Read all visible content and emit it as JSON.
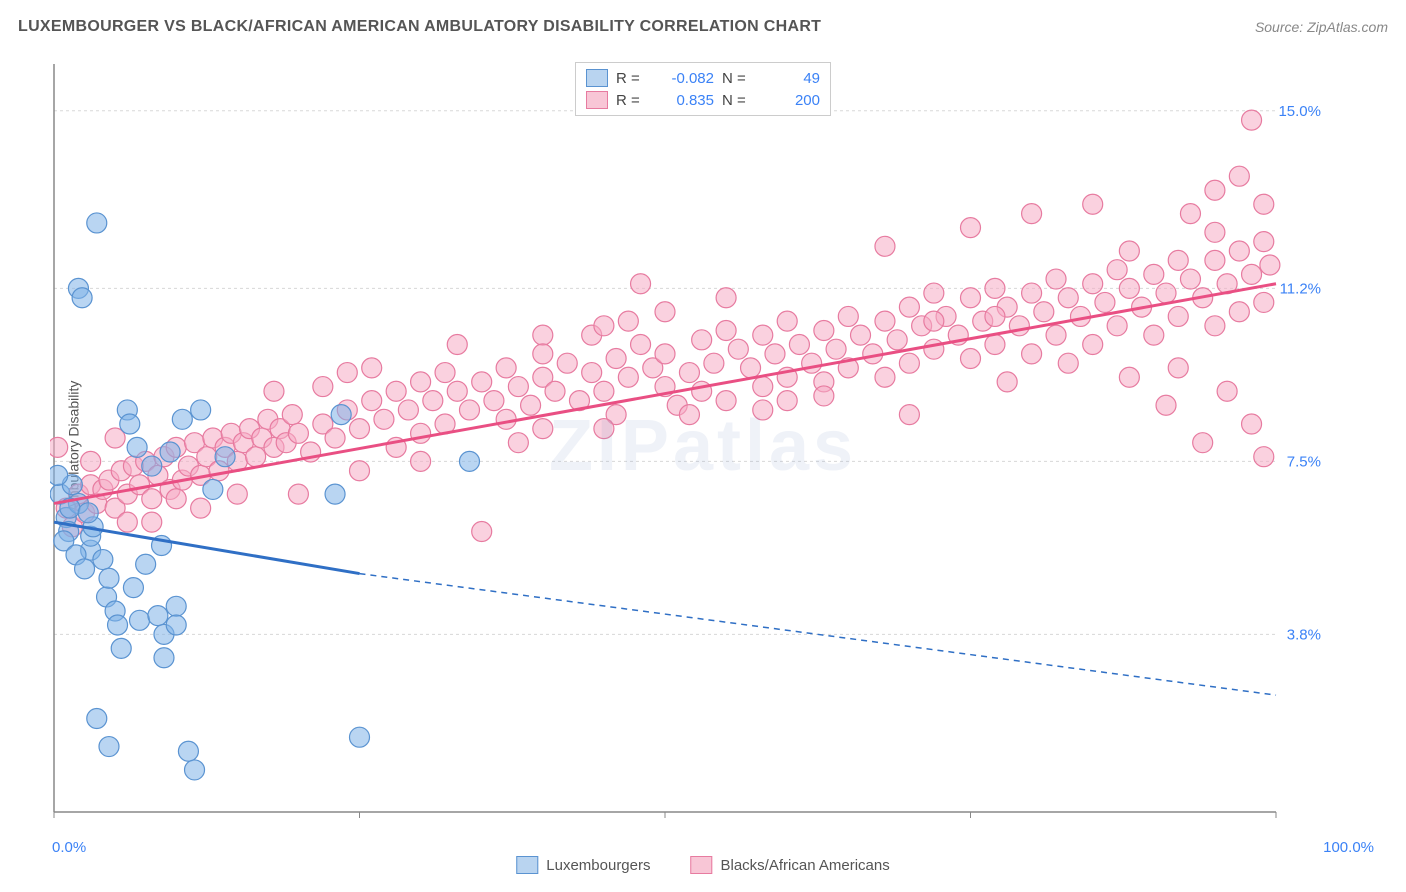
{
  "title": "LUXEMBOURGER VS BLACK/AFRICAN AMERICAN AMBULATORY DISABILITY CORRELATION CHART",
  "source": "Source: ZipAtlas.com",
  "watermark": "ZIPatlas",
  "y_axis_label": "Ambulatory Disability",
  "chart": {
    "type": "scatter",
    "background_color": "#ffffff",
    "grid_color": "#d8d8d8",
    "axis_color": "#888888",
    "xlim": [
      0,
      100
    ],
    "ylim": [
      0,
      16
    ],
    "x_ticks": [
      0,
      25,
      50,
      75,
      100
    ],
    "x_tick_labels": {
      "first": "0.0%",
      "last": "100.0%"
    },
    "y_ticks": [
      3.8,
      7.5,
      11.2,
      15.0
    ],
    "y_tick_labels": [
      "3.8%",
      "7.5%",
      "11.2%",
      "15.0%"
    ],
    "series": [
      {
        "name": "Luxembourgers",
        "fill_color": "rgba(128, 178, 232, 0.55)",
        "stroke_color": "#5a93d1",
        "line_color": "#2f6fc5",
        "swatch_fill": "#b9d4f0",
        "swatch_border": "#5a93d1",
        "R": "-0.082",
        "N": "49",
        "marker_radius": 10,
        "trend": {
          "x1": 0,
          "y1": 6.2,
          "x2": 25,
          "y2": 5.1,
          "x_dash_end": 100,
          "y_dash_end": 2.5
        },
        "points": [
          [
            0.5,
            6.8
          ],
          [
            1,
            6.3
          ],
          [
            1.2,
            6.0
          ],
          [
            1.5,
            7.0
          ],
          [
            2,
            6.6
          ],
          [
            2,
            11.2
          ],
          [
            2.3,
            11.0
          ],
          [
            3,
            5.6
          ],
          [
            3,
            5.9
          ],
          [
            3.2,
            6.1
          ],
          [
            3.5,
            12.6
          ],
          [
            4,
            5.4
          ],
          [
            4.3,
            4.6
          ],
          [
            4.5,
            5.0
          ],
          [
            5,
            4.3
          ],
          [
            5.2,
            4.0
          ],
          [
            5.5,
            3.5
          ],
          [
            6,
            8.6
          ],
          [
            6.2,
            8.3
          ],
          [
            6.5,
            4.8
          ],
          [
            7,
            4.1
          ],
          [
            7.5,
            5.3
          ],
          [
            8,
            7.4
          ],
          [
            8.5,
            4.2
          ],
          [
            9,
            3.3
          ],
          [
            9,
            3.8
          ],
          [
            9.5,
            7.7
          ],
          [
            10,
            4.4
          ],
          [
            10,
            4.0
          ],
          [
            10.5,
            8.4
          ],
          [
            11,
            1.3
          ],
          [
            11.5,
            0.9
          ],
          [
            3.5,
            2.0
          ],
          [
            4.5,
            1.4
          ],
          [
            12,
            8.6
          ],
          [
            13,
            6.9
          ],
          [
            14,
            7.6
          ],
          [
            23,
            6.8
          ],
          [
            23.5,
            8.5
          ],
          [
            25,
            1.6
          ],
          [
            34,
            7.5
          ],
          [
            0.8,
            5.8
          ],
          [
            1.8,
            5.5
          ],
          [
            2.5,
            5.2
          ],
          [
            0.3,
            7.2
          ],
          [
            1.3,
            6.5
          ],
          [
            2.8,
            6.4
          ],
          [
            6.8,
            7.8
          ],
          [
            8.8,
            5.7
          ]
        ]
      },
      {
        "name": "Blacks/African Americans",
        "fill_color": "rgba(246, 172, 196, 0.55)",
        "stroke_color": "#e77ba0",
        "line_color": "#e94f83",
        "swatch_fill": "#f8c6d6",
        "swatch_border": "#e77ba0",
        "R": "0.835",
        "N": "200",
        "marker_radius": 10,
        "trend": {
          "x1": 0,
          "y1": 6.6,
          "x2": 100,
          "y2": 11.3
        },
        "points": [
          [
            0.3,
            7.8
          ],
          [
            1,
            6.5
          ],
          [
            1.5,
            6.1
          ],
          [
            2,
            6.8
          ],
          [
            2.5,
            6.4
          ],
          [
            3,
            7.0
          ],
          [
            3.5,
            6.6
          ],
          [
            4,
            6.9
          ],
          [
            4.5,
            7.1
          ],
          [
            5,
            6.5
          ],
          [
            5.5,
            7.3
          ],
          [
            6,
            6.8
          ],
          [
            6.5,
            7.4
          ],
          [
            7,
            7.0
          ],
          [
            7.5,
            7.5
          ],
          [
            8,
            6.7
          ],
          [
            8.5,
            7.2
          ],
          [
            9,
            7.6
          ],
          [
            9.5,
            6.9
          ],
          [
            10,
            7.8
          ],
          [
            10.5,
            7.1
          ],
          [
            11,
            7.4
          ],
          [
            11.5,
            7.9
          ],
          [
            12,
            7.2
          ],
          [
            12.5,
            7.6
          ],
          [
            13,
            8.0
          ],
          [
            13.5,
            7.3
          ],
          [
            14,
            7.8
          ],
          [
            14.5,
            8.1
          ],
          [
            15,
            7.5
          ],
          [
            15.5,
            7.9
          ],
          [
            16,
            8.2
          ],
          [
            16.5,
            7.6
          ],
          [
            17,
            8.0
          ],
          [
            17.5,
            8.4
          ],
          [
            18,
            7.8
          ],
          [
            18.5,
            8.2
          ],
          [
            19,
            7.9
          ],
          [
            19.5,
            8.5
          ],
          [
            20,
            8.1
          ],
          [
            21,
            7.7
          ],
          [
            22,
            8.3
          ],
          [
            22,
            9.1
          ],
          [
            23,
            8.0
          ],
          [
            24,
            8.6
          ],
          [
            24,
            9.4
          ],
          [
            25,
            8.2
          ],
          [
            26,
            8.8
          ],
          [
            27,
            8.4
          ],
          [
            28,
            9.0
          ],
          [
            28,
            7.8
          ],
          [
            29,
            8.6
          ],
          [
            30,
            9.2
          ],
          [
            30,
            8.1
          ],
          [
            31,
            8.8
          ],
          [
            32,
            9.4
          ],
          [
            32,
            8.3
          ],
          [
            33,
            9.0
          ],
          [
            34,
            8.6
          ],
          [
            35,
            9.2
          ],
          [
            35,
            6.0
          ],
          [
            36,
            8.8
          ],
          [
            37,
            9.5
          ],
          [
            37,
            8.4
          ],
          [
            38,
            9.1
          ],
          [
            39,
            8.7
          ],
          [
            40,
            9.3
          ],
          [
            40,
            8.2
          ],
          [
            41,
            9.0
          ],
          [
            42,
            9.6
          ],
          [
            43,
            8.8
          ],
          [
            44,
            9.4
          ],
          [
            44,
            10.2
          ],
          [
            45,
            9.0
          ],
          [
            46,
            9.7
          ],
          [
            46,
            8.5
          ],
          [
            47,
            9.3
          ],
          [
            48,
            10.0
          ],
          [
            48,
            11.3
          ],
          [
            49,
            9.5
          ],
          [
            50,
            9.1
          ],
          [
            50,
            9.8
          ],
          [
            51,
            8.7
          ],
          [
            52,
            9.4
          ],
          [
            53,
            10.1
          ],
          [
            53,
            9.0
          ],
          [
            54,
            9.6
          ],
          [
            55,
            10.3
          ],
          [
            55,
            8.8
          ],
          [
            56,
            9.9
          ],
          [
            57,
            9.5
          ],
          [
            58,
            10.2
          ],
          [
            58,
            9.1
          ],
          [
            59,
            9.8
          ],
          [
            60,
            10.5
          ],
          [
            60,
            9.3
          ],
          [
            61,
            10.0
          ],
          [
            62,
            9.6
          ],
          [
            63,
            10.3
          ],
          [
            63,
            9.2
          ],
          [
            64,
            9.9
          ],
          [
            65,
            10.6
          ],
          [
            65,
            9.5
          ],
          [
            66,
            10.2
          ],
          [
            67,
            9.8
          ],
          [
            68,
            10.5
          ],
          [
            68,
            12.1
          ],
          [
            69,
            10.1
          ],
          [
            70,
            10.8
          ],
          [
            70,
            9.6
          ],
          [
            71,
            10.4
          ],
          [
            72,
            11.1
          ],
          [
            72,
            9.9
          ],
          [
            73,
            10.6
          ],
          [
            74,
            10.2
          ],
          [
            75,
            11.0
          ],
          [
            75,
            9.7
          ],
          [
            76,
            10.5
          ],
          [
            77,
            11.2
          ],
          [
            77,
            10.0
          ],
          [
            78,
            10.8
          ],
          [
            79,
            10.4
          ],
          [
            80,
            11.1
          ],
          [
            80,
            9.8
          ],
          [
            81,
            10.7
          ],
          [
            82,
            11.4
          ],
          [
            82,
            10.2
          ],
          [
            83,
            11.0
          ],
          [
            84,
            10.6
          ],
          [
            85,
            11.3
          ],
          [
            85,
            10.0
          ],
          [
            86,
            10.9
          ],
          [
            87,
            11.6
          ],
          [
            87,
            10.4
          ],
          [
            88,
            11.2
          ],
          [
            89,
            10.8
          ],
          [
            90,
            11.5
          ],
          [
            90,
            10.2
          ],
          [
            91,
            11.1
          ],
          [
            91,
            8.7
          ],
          [
            92,
            11.8
          ],
          [
            92,
            10.6
          ],
          [
            93,
            11.4
          ],
          [
            93,
            12.8
          ],
          [
            94,
            11.0
          ],
          [
            94,
            7.9
          ],
          [
            95,
            11.8
          ],
          [
            95,
            10.4
          ],
          [
            95,
            13.3
          ],
          [
            96,
            11.3
          ],
          [
            96,
            9.0
          ],
          [
            97,
            12.0
          ],
          [
            97,
            10.7
          ],
          [
            97,
            13.6
          ],
          [
            98,
            11.5
          ],
          [
            98,
            8.3
          ],
          [
            98,
            14.8
          ],
          [
            99,
            12.2
          ],
          [
            99,
            10.9
          ],
          [
            99,
            13.0
          ],
          [
            99,
            7.6
          ],
          [
            99.5,
            11.7
          ],
          [
            18,
            9.0
          ],
          [
            26,
            9.5
          ],
          [
            33,
            10.0
          ],
          [
            40,
            10.2
          ],
          [
            47,
            10.5
          ],
          [
            20,
            6.8
          ],
          [
            25,
            7.3
          ],
          [
            30,
            7.5
          ],
          [
            38,
            7.9
          ],
          [
            45,
            8.2
          ],
          [
            52,
            8.5
          ],
          [
            60,
            8.8
          ],
          [
            68,
            9.3
          ],
          [
            75,
            12.5
          ],
          [
            80,
            12.8
          ],
          [
            85,
            13.0
          ],
          [
            88,
            9.3
          ],
          [
            92,
            9.5
          ],
          [
            95,
            12.4
          ],
          [
            72,
            10.5
          ],
          [
            55,
            11.0
          ],
          [
            50,
            10.7
          ],
          [
            45,
            10.4
          ],
          [
            40,
            9.8
          ],
          [
            58,
            8.6
          ],
          [
            63,
            8.9
          ],
          [
            70,
            8.5
          ],
          [
            78,
            9.2
          ],
          [
            83,
            9.6
          ],
          [
            88,
            12.0
          ],
          [
            15,
            6.8
          ],
          [
            5,
            8.0
          ],
          [
            8,
            6.2
          ],
          [
            12,
            6.5
          ],
          [
            3,
            7.5
          ],
          [
            6,
            6.2
          ],
          [
            10,
            6.7
          ],
          [
            77,
            10.6
          ]
        ]
      }
    ]
  },
  "legend_bottom": [
    {
      "label": "Luxembourgers",
      "fill": "#b9d4f0",
      "border": "#5a93d1"
    },
    {
      "label": "Blacks/African Americans",
      "fill": "#f8c6d6",
      "border": "#e77ba0"
    }
  ]
}
